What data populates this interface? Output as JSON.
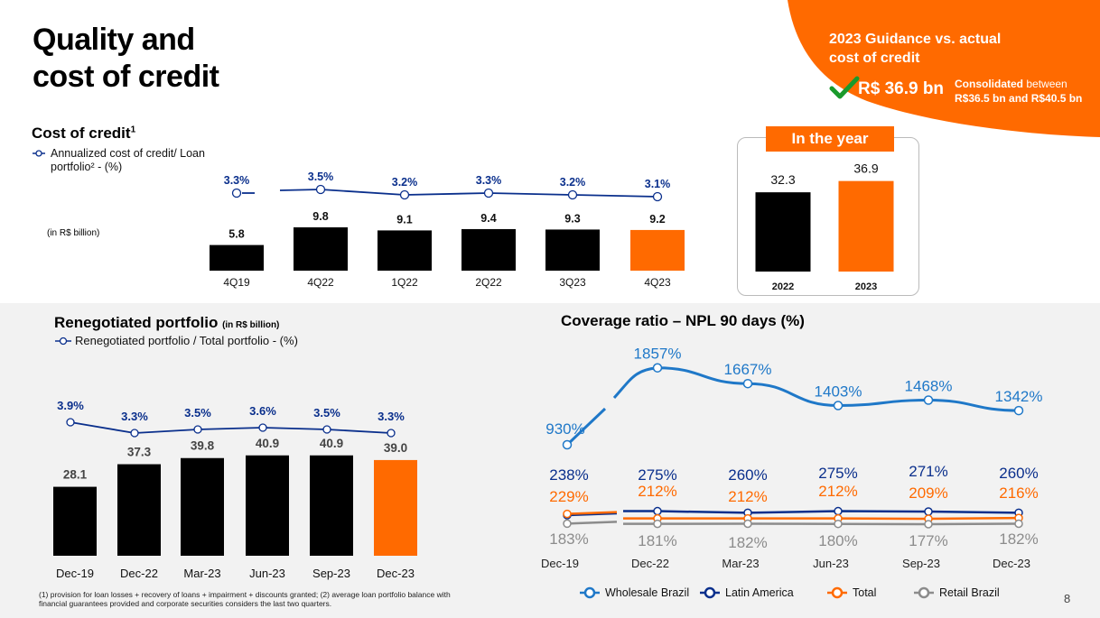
{
  "page": {
    "title_line1": "Quality and",
    "title_line2": "cost of credit",
    "page_number": "8",
    "footnote": "(1) provision for loan losses + recovery of loans + impairment + discounts granted; (2) average loan portfolio balance with financial guarantees provided and corporate securities considers the last two quarters."
  },
  "guidance": {
    "title_line1": "2023 Guidance  vs. actual",
    "title_line2": "cost of credit",
    "value": "R$ 36.9 bn",
    "note_bold": "Consolidated",
    "note_rest": " between",
    "note_line2": "R$36.5 bn and R$40.5 bn",
    "check_icon": "check-icon"
  },
  "colors": {
    "orange": "#ff6a00",
    "navy": "#0a2f8c",
    "wholesale_blue": "#1f78c8",
    "latam_navy": "#0a2f8c",
    "total_orange": "#ff6a00",
    "retail_gray": "#8c8c8c",
    "black": "#000000"
  },
  "cost_of_credit": {
    "title": "Cost of credit",
    "title_sup": "1",
    "legend_line1": "Annualized cost of credit/ Loan",
    "legend_line2": "portfolio² - (%)",
    "unit_note": "(in R$ billion)"
  },
  "in_the_year": {
    "header": "In the year"
  },
  "renegotiated": {
    "title": "Renegotiated portfolio",
    "title_unit": "(in R$ billion)",
    "legend": "Renegotiated portfolio / Total portfolio - (%)"
  },
  "coverage": {
    "title": "Coverage ratio – NPL 90 days (%)",
    "legend": [
      "Wholesale Brazil",
      "Latin America",
      "Total",
      "Retail Brazil"
    ]
  },
  "chart_data": [
    {
      "id": "cost_of_credit",
      "type": "bar",
      "categories": [
        "4Q19",
        "4Q22",
        "1Q22",
        "2Q22",
        "3Q23",
        "4Q23"
      ],
      "values": [
        5.8,
        9.8,
        9.1,
        9.4,
        9.3,
        9.2
      ],
      "value_labels": [
        "5.8",
        "9.8",
        "9.1",
        "9.4",
        "9.3",
        "9.2"
      ],
      "highlight_index": 5,
      "line_series": {
        "name": "Annualized cost of credit/ Loan portfolio² - (%)",
        "values": [
          3.3,
          3.5,
          3.2,
          3.3,
          3.2,
          3.1
        ],
        "labels": [
          "3.3%",
          "3.5%",
          "3.2%",
          "3.3%",
          "3.2%",
          "3.1%"
        ]
      }
    },
    {
      "id": "in_the_year",
      "type": "bar",
      "categories": [
        "2022",
        "2023"
      ],
      "values": [
        32.3,
        36.9
      ],
      "value_labels": [
        "32.3",
        "36.9"
      ],
      "highlight_index": 1
    },
    {
      "id": "renegotiated",
      "type": "bar",
      "categories": [
        "Dec-19",
        "Dec-22",
        "Mar-23",
        "Jun-23",
        "Sep-23",
        "Dec-23"
      ],
      "values": [
        28.1,
        37.3,
        39.8,
        40.9,
        40.9,
        39.0
      ],
      "value_labels": [
        "28.1",
        "37.3",
        "39.8",
        "40.9",
        "40.9",
        "39.0"
      ],
      "highlight_index": 5,
      "line_series": {
        "name": "Renegotiated portfolio / Total portfolio - (%)",
        "values": [
          3.9,
          3.3,
          3.5,
          3.6,
          3.5,
          3.3
        ],
        "labels": [
          "3.9%",
          "3.3%",
          "3.5%",
          "3.6%",
          "3.5%",
          "3.3%"
        ]
      }
    },
    {
      "id": "coverage",
      "type": "line",
      "categories": [
        "Dec-19",
        "Dec-22",
        "Mar-23",
        "Jun-23",
        "Sep-23",
        "Dec-23"
      ],
      "series": [
        {
          "name": "Wholesale Brazil",
          "values": [
            930,
            1857,
            1667,
            1403,
            1468,
            1342
          ],
          "labels": [
            "930%",
            "1857%",
            "1667%",
            "1403%",
            "1468%",
            "1342%"
          ]
        },
        {
          "name": "Latin America",
          "values": [
            238,
            275,
            260,
            275,
            271,
            260
          ],
          "labels": [
            "238%",
            "275%",
            "260%",
            "275%",
            "271%",
            "260%"
          ]
        },
        {
          "name": "Total",
          "values": [
            229,
            212,
            212,
            212,
            209,
            216
          ],
          "labels": [
            "229%",
            "212%",
            "212%",
            "212%",
            "209%",
            "216%"
          ]
        },
        {
          "name": "Retail Brazil",
          "values": [
            183,
            181,
            182,
            180,
            177,
            182
          ],
          "labels": [
            "183%",
            "181%",
            "182%",
            "180%",
            "177%",
            "182%"
          ]
        }
      ]
    }
  ]
}
